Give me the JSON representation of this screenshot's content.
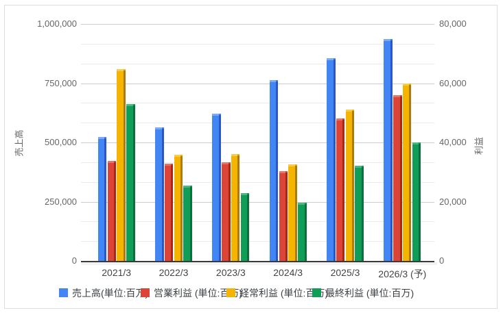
{
  "chart_data": {
    "type": "bar",
    "title": "",
    "categories": [
      "2021/3",
      "2022/3",
      "2023/3",
      "2024/3",
      "2025/3",
      "2026/3 (予)"
    ],
    "series": [
      {
        "name": "売上高(単位:百万)",
        "axis": "left",
        "color": "#4285F4",
        "color_light": "#7baaf7",
        "color_dark": "#2a56c6",
        "values": [
          522000,
          565000,
          622000,
          762000,
          855000,
          935000
        ]
      },
      {
        "name": "営業利益 (単位:百万)",
        "axis": "right",
        "color": "#DB4437",
        "color_light": "#e57368",
        "color_dark": "#a52714",
        "values": [
          33700,
          32900,
          33200,
          30300,
          48200,
          56000
        ]
      },
      {
        "name": "経常利益 (単位:百万)",
        "axis": "right",
        "color": "#F4B400",
        "color_light": "#f7cb4d",
        "color_dark": "#aa7b06",
        "values": [
          64800,
          35900,
          36000,
          32700,
          51000,
          60000
        ]
      },
      {
        "name": "最終利益 (単位:百万)",
        "axis": "right",
        "color": "#0F9D58",
        "color_light": "#4fb383",
        "color_dark": "#0b6e3d",
        "values": [
          52900,
          25500,
          23000,
          19600,
          32100,
          39900
        ]
      }
    ],
    "left_axis": {
      "title": "売上高",
      "min": 0,
      "max": 1000000,
      "tick_labels": [
        "1,000,000",
        "750,000",
        "500,000",
        "250,000",
        "0"
      ]
    },
    "right_axis": {
      "title": "利益",
      "min": 0,
      "max": 80000,
      "tick_labels": [
        "80,000",
        "60,000",
        "40,000",
        "20,000",
        "0"
      ]
    },
    "grid": {
      "major_between_ticks": true,
      "minor_per_major_gap": 2
    },
    "legend_position": "bottom"
  }
}
